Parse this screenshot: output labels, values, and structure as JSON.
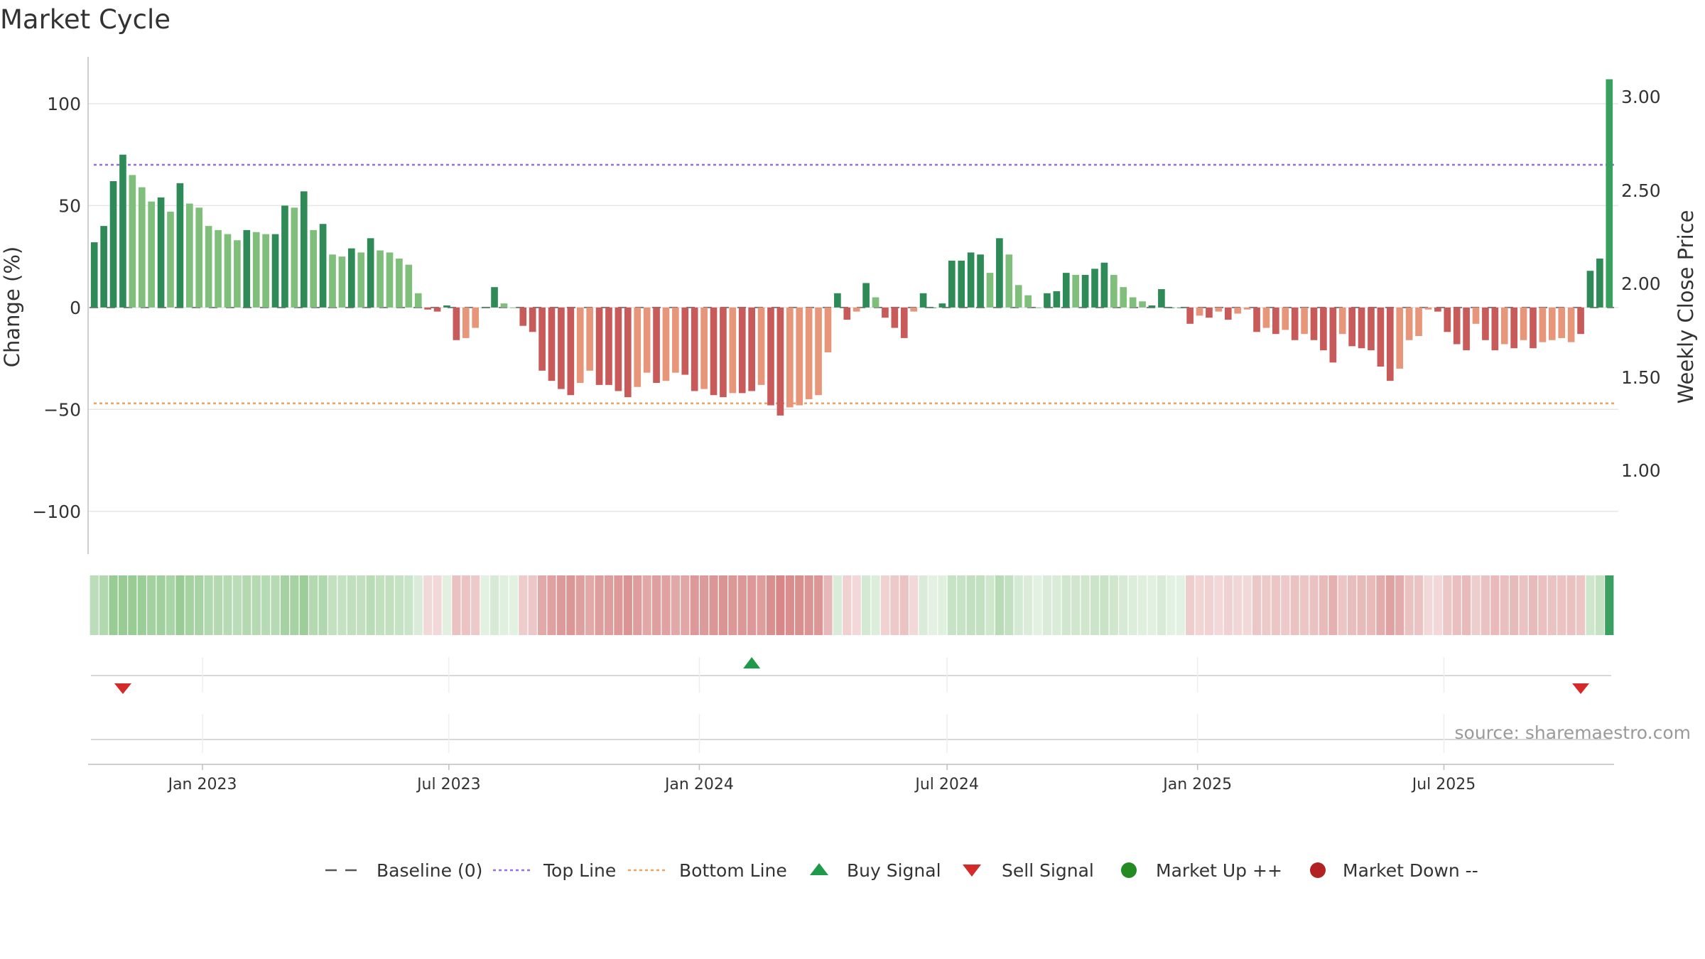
{
  "chart_data": {
    "type": "bar",
    "title": "Market Cycle",
    "ylabel": "Change (%)",
    "y2label": "Weekly Close Price",
    "ylim": [
      -121,
      123
    ],
    "y_ticks": [
      100,
      50,
      0,
      -50,
      -100
    ],
    "y_tick_labels": [
      "100",
      "50",
      "0",
      "−50",
      "−100"
    ],
    "y2_tick_labels": [
      "3.00",
      "2.50",
      "2.00",
      "1.50",
      "1.00"
    ],
    "grid": true,
    "top_line": 70,
    "bottom_line": -47,
    "x_start": "2022-10-10",
    "x_end": "2025-10-06",
    "x_step_days": 7,
    "x_ticks": [
      {
        "label": "Jan 2023",
        "date": "2023-01-01"
      },
      {
        "label": "Jul 2023",
        "date": "2023-07-01"
      },
      {
        "label": "Jan 2024",
        "date": "2024-01-01"
      },
      {
        "label": "Jul 2024",
        "date": "2024-07-01"
      },
      {
        "label": "Jan 2025",
        "date": "2025-01-01"
      },
      {
        "label": "Jul 2025",
        "date": "2025-07-01"
      }
    ],
    "values": [
      32,
      40,
      62,
      75,
      65,
      59,
      52,
      54,
      47,
      61,
      51,
      49,
      40,
      38,
      36,
      33,
      38,
      37,
      36,
      36,
      50,
      49,
      57,
      38,
      41,
      26,
      25,
      29,
      27,
      34,
      28,
      27,
      24,
      21,
      7,
      -1,
      -2,
      1,
      -16,
      -15,
      -10,
      0,
      10,
      2,
      0,
      -9,
      -12,
      -31,
      -36,
      -40,
      -43,
      -37,
      -31,
      -38,
      -38,
      -41,
      -44,
      -39,
      -32,
      -37,
      -36,
      -32,
      -33,
      -41,
      -40,
      -43,
      -44,
      -42,
      -42,
      -41,
      -38,
      -48,
      -53,
      -49,
      -48,
      -45,
      -43,
      -22,
      7,
      -6,
      -2,
      12,
      5,
      -5,
      -10,
      -15,
      -2,
      7,
      0,
      2,
      23,
      23,
      27,
      26,
      17,
      34,
      26,
      11,
      6,
      0,
      7,
      8,
      17,
      16,
      16,
      19,
      22,
      16,
      10,
      5,
      3,
      1,
      9,
      0,
      0,
      -8,
      -4,
      -5,
      -2,
      -6,
      -3,
      -1,
      -12,
      -10,
      -13,
      -11,
      -16,
      -13,
      -16,
      -21,
      -27,
      -13,
      -19,
      -20,
      -21,
      -29,
      -36,
      -30,
      -16,
      -14,
      -1,
      -2,
      -12,
      -18,
      -21,
      -8,
      -16,
      -21,
      -18,
      -20,
      -16,
      -20,
      -17,
      -16,
      -15,
      -17,
      -13,
      18,
      24,
      112
    ],
    "strength": [
      2,
      2,
      2,
      2,
      1,
      1,
      1,
      2,
      1,
      2,
      1,
      1,
      1,
      1,
      1,
      1,
      2,
      1,
      1,
      2,
      2,
      1,
      2,
      1,
      2,
      1,
      1,
      2,
      1,
      2,
      1,
      1,
      1,
      1,
      1,
      2,
      2,
      2,
      2,
      1,
      1,
      2,
      2,
      1,
      1,
      2,
      2,
      2,
      2,
      2,
      2,
      1,
      1,
      2,
      2,
      2,
      2,
      1,
      1,
      2,
      1,
      1,
      2,
      2,
      1,
      2,
      2,
      1,
      2,
      2,
      1,
      2,
      2,
      1,
      1,
      1,
      1,
      1,
      2,
      2,
      1,
      2,
      1,
      2,
      2,
      2,
      1,
      2,
      2,
      2,
      2,
      2,
      2,
      2,
      1,
      2,
      1,
      1,
      1,
      1,
      2,
      2,
      2,
      1,
      2,
      2,
      2,
      1,
      1,
      1,
      1,
      2,
      2,
      2,
      2,
      2,
      1,
      2,
      1,
      2,
      1,
      1,
      2,
      1,
      2,
      1,
      2,
      1,
      2,
      2,
      2,
      1,
      2,
      2,
      2,
      2,
      2,
      1,
      1,
      1,
      1,
      2,
      2,
      2,
      2,
      1,
      2,
      2,
      1,
      2,
      1,
      2,
      1,
      1,
      1,
      1,
      2,
      2,
      2,
      2
    ],
    "buy_signals": [
      "2024-02-05"
    ],
    "sell_signals": [
      "2022-10-31",
      "2025-10-06"
    ],
    "colors": {
      "up_strong": "#2e8b57",
      "up_weak": "#7fbf7b",
      "down_strong": "#c85a5a",
      "down_weak": "#e8967a",
      "up_latest": "#3aa060",
      "top_line": "#9b6dd6",
      "bottom_line": "#f0a060",
      "buy": "#1e9a4a",
      "sell": "#d42a2a",
      "market_up": "#228b22",
      "market_down": "#b22222",
      "baseline": "#555555"
    },
    "legend_position": "bottom-center",
    "legend": [
      {
        "label": "Baseline (0)",
        "kind": "dash"
      },
      {
        "label": "Top Line",
        "kind": "dot-purple"
      },
      {
        "label": "Bottom Line",
        "kind": "dot-orange"
      },
      {
        "label": "Buy Signal",
        "kind": "triangle-up"
      },
      {
        "label": "Sell Signal",
        "kind": "triangle-down"
      },
      {
        "label": "Market Up ++",
        "kind": "circle-green"
      },
      {
        "label": "Market Down --",
        "kind": "circle-red"
      }
    ],
    "source": "source: sharemaestro.com"
  }
}
